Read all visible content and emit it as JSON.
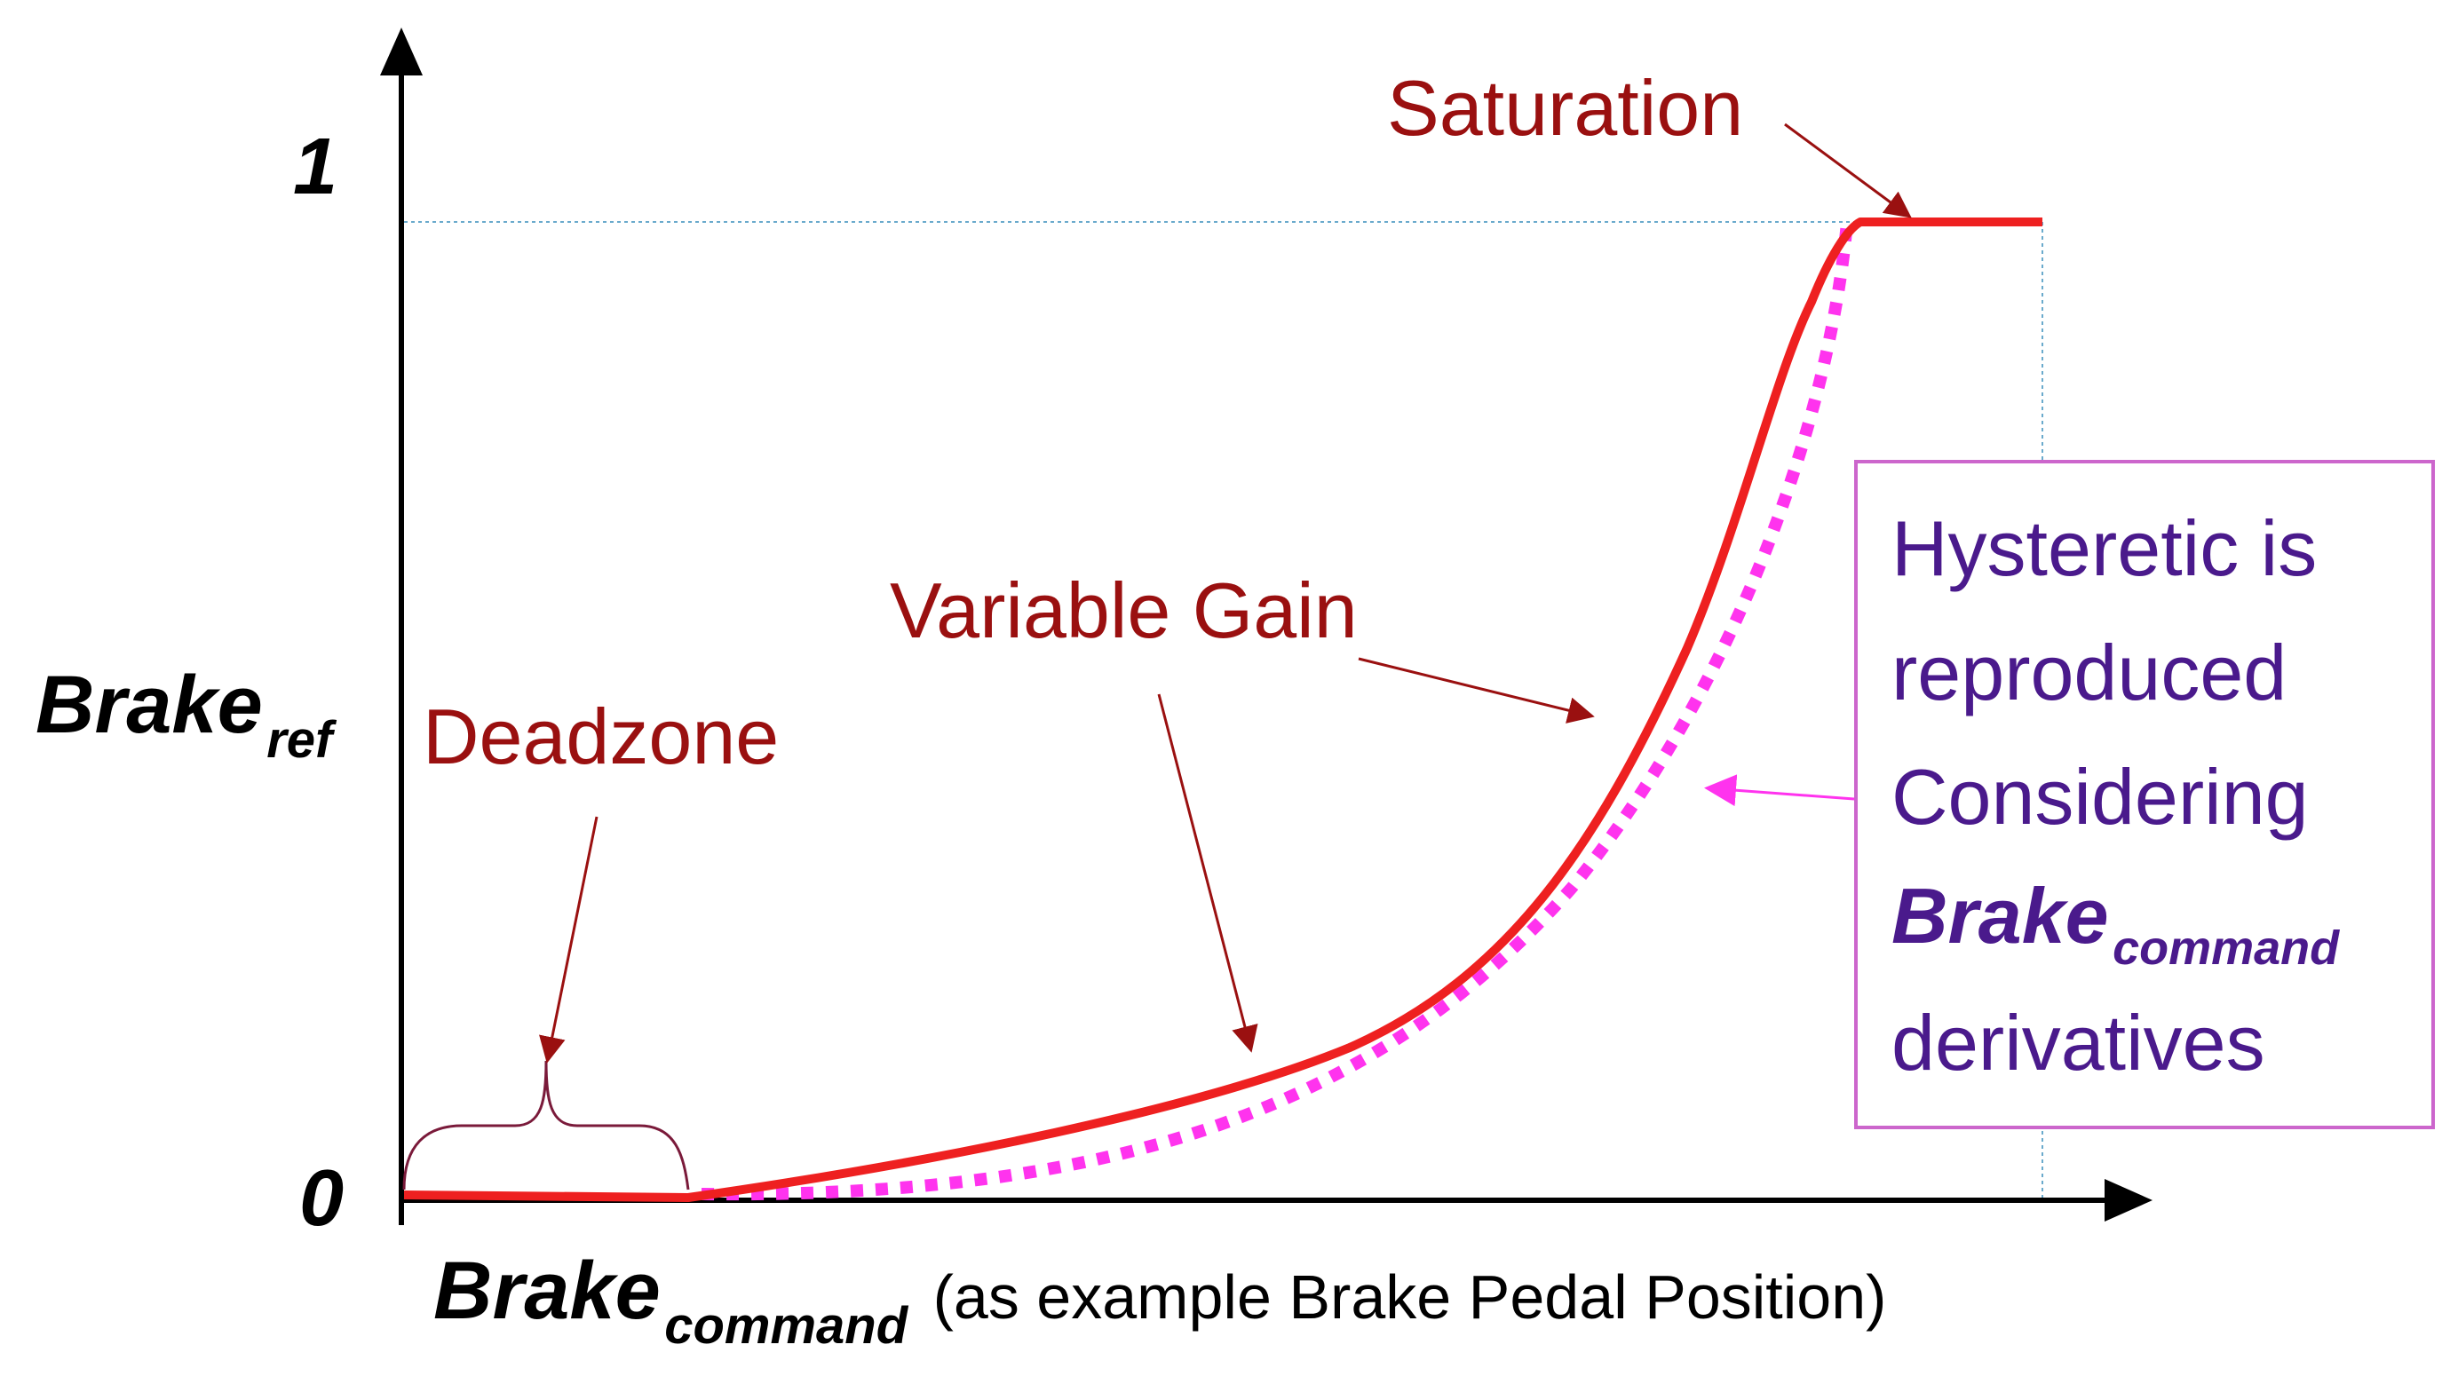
{
  "axes": {
    "y_tick_top": "1",
    "y_tick_bottom": "0",
    "y_label_main": "Brake",
    "y_label_sub": "ref",
    "x_label_main": "Brake",
    "x_label_sub": "command",
    "x_label_note": "(as example Brake Pedal Position)"
  },
  "annotations": {
    "saturation": "Saturation",
    "variable_gain": "Variable Gain",
    "deadzone": "Deadzone"
  },
  "callout": {
    "line1": "Hysteretic is",
    "line2": "reproduced",
    "line3": "Considering",
    "line4_main": "Brake",
    "line4_sub": "command",
    "line5": "derivatives"
  },
  "colors": {
    "curve": "#ee2020",
    "hysteresis": "#ff33ee",
    "annotation_text": "#9a1010",
    "callout_text": "#4a1a8c",
    "callout_border": "#cc66cc",
    "guide_line": "#6aaacc",
    "axis": "#000000"
  }
}
